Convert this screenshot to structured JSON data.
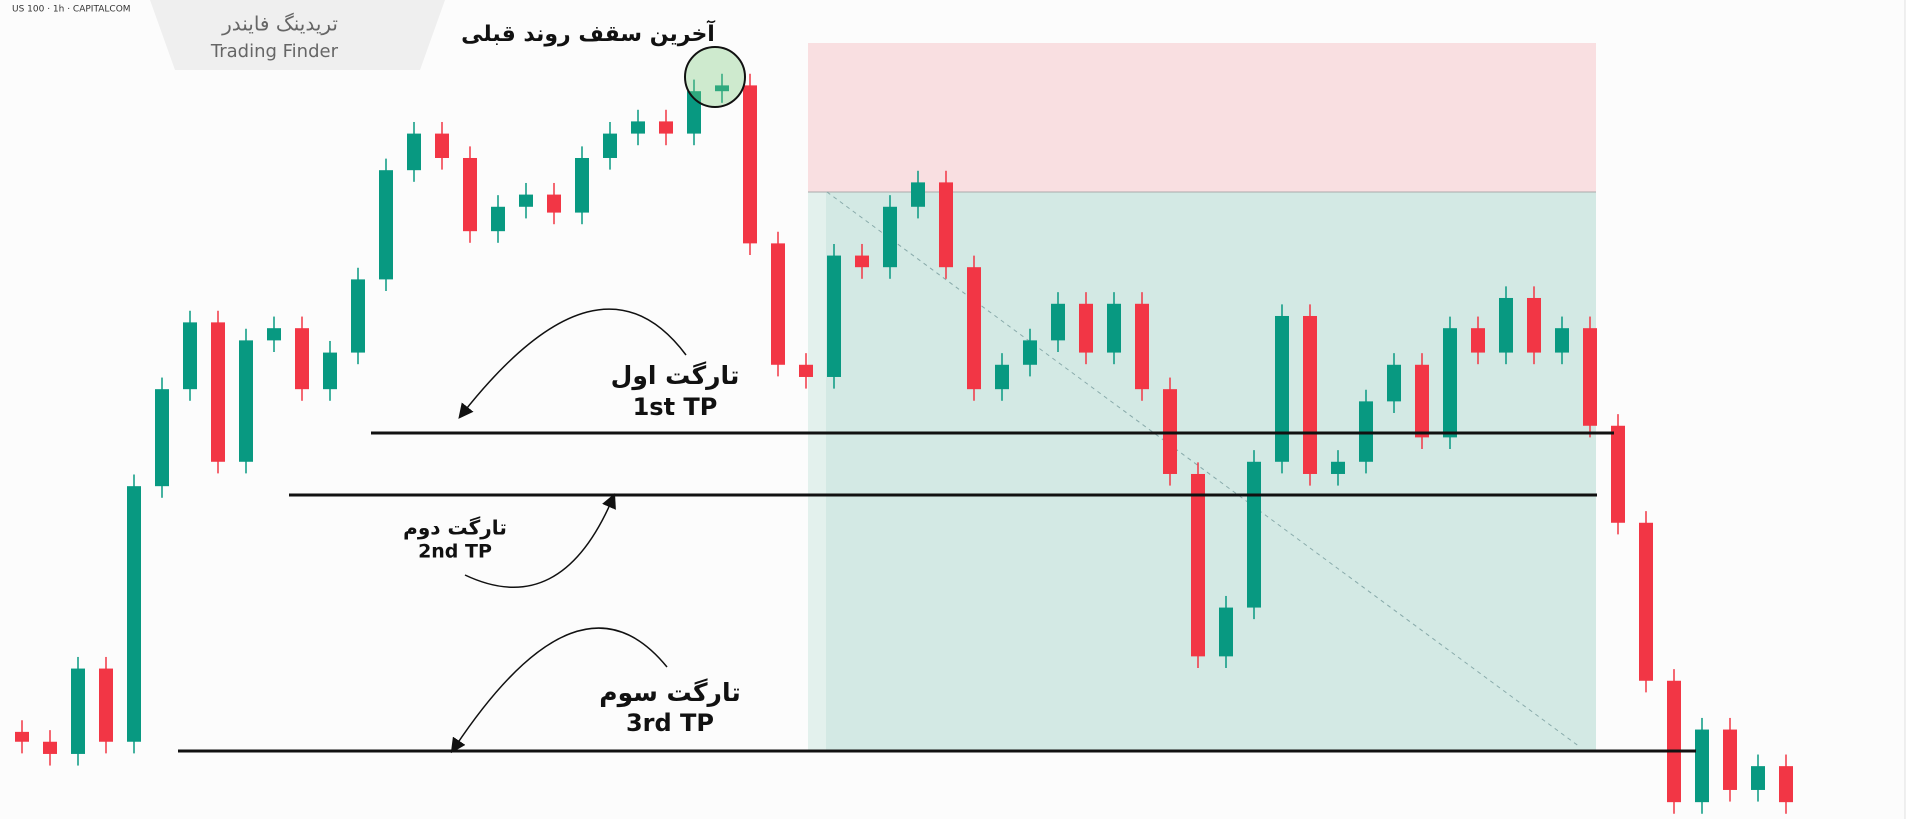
{
  "header": {
    "symbol": "US 100 · 1h · CAPITALCOM",
    "logo_fa": "تریدینگ فایندر",
    "logo_en": "Trading Finder"
  },
  "annotations": {
    "top": "آخرین سقف روند قبلی",
    "tp1_fa": "تارگت اول",
    "tp1_en": "1st TP",
    "tp2_fa": "تارگت دوم",
    "tp2_en": "2nd TP",
    "tp3_fa": "تارگت سوم",
    "tp3_en": "3rd TP"
  },
  "chart_data": {
    "type": "candlestick",
    "up_color": "#089981",
    "down_color": "#f23645",
    "ylim": [
      18290,
      19700
    ],
    "open": [
      18440,
      18423,
      18402,
      18549,
      18423,
      18863,
      19030,
      19145,
      18905,
      19114,
      19135,
      19030,
      19093,
      19219,
      19407,
      19470,
      19428,
      19302,
      19344,
      19365,
      19334,
      19428,
      19470,
      19491,
      19470,
      19543,
      19553,
      19281,
      19072,
      19051,
      19260,
      19240,
      19344,
      19386,
      19240,
      19030,
      19072,
      19114,
      19177,
      19093,
      19177,
      19030,
      18884,
      18570,
      18654,
      18905,
      19156,
      18884,
      18905,
      19009,
      19072,
      18947,
      19135,
      19093,
      19187,
      19093,
      19135,
      18967,
      18800,
      18528,
      18319,
      18444,
      18340,
      18381
    ],
    "high": [
      18460,
      18443,
      18569,
      18569,
      18883,
      19050,
      19165,
      19165,
      19134,
      19155,
      19155,
      19113,
      19239,
      19427,
      19490,
      19490,
      19448,
      19364,
      19385,
      19385,
      19448,
      19490,
      19511,
      19511,
      19563,
      19573,
      19573,
      19301,
      19092,
      19280,
      19280,
      19364,
      19406,
      19406,
      19260,
      19092,
      19134,
      19197,
      19197,
      19197,
      19197,
      19050,
      18904,
      18674,
      18925,
      19176,
      19176,
      18925,
      19029,
      19092,
      19092,
      19155,
      19155,
      19207,
      19207,
      19155,
      19155,
      18987,
      18820,
      18548,
      18464,
      18464,
      18401,
      18401
    ],
    "low": [
      18403,
      18382,
      18382,
      18403,
      18403,
      18843,
      19010,
      18885,
      18885,
      19094,
      19010,
      19010,
      19073,
      19199,
      19387,
      19408,
      19282,
      19282,
      19324,
      19314,
      19314,
      19408,
      19450,
      19450,
      19450,
      19523,
      19261,
      19052,
      19031,
      19031,
      19220,
      19220,
      19324,
      19220,
      19010,
      19010,
      19052,
      19094,
      19073,
      19073,
      19010,
      18864,
      18550,
      18550,
      18634,
      18885,
      18864,
      18864,
      18885,
      18989,
      18927,
      18927,
      19073,
      19073,
      19073,
      19073,
      18947,
      18780,
      18508,
      18299,
      18299,
      18320,
      18320,
      18299
    ],
    "close": [
      18423,
      18402,
      18549,
      18423,
      18863,
      19030,
      19145,
      18905,
      19114,
      19135,
      19030,
      19093,
      19219,
      19407,
      19470,
      19428,
      19302,
      19344,
      19365,
      19334,
      19428,
      19470,
      19491,
      19470,
      19543,
      19553,
      19281,
      19072,
      19051,
      19260,
      19240,
      19344,
      19386,
      19240,
      19030,
      19072,
      19114,
      19177,
      19093,
      19177,
      19030,
      18884,
      18570,
      18654,
      18905,
      19156,
      18884,
      18905,
      19009,
      19072,
      18947,
      19135,
      19093,
      19187,
      19093,
      19135,
      18967,
      18800,
      18528,
      18319,
      18444,
      18340,
      18381,
      18319
    ]
  }
}
